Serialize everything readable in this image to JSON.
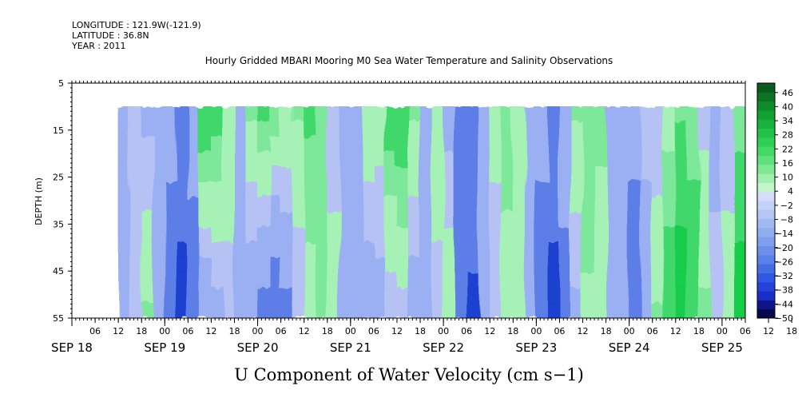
{
  "header": {
    "longitude": "LONGITUDE : 121.9W(-121.9)",
    "latitude": "LATITUDE : 36.8N",
    "year": "YEAR : 2011",
    "title": "Hourly Gridded MBARI Mooring M0 Sea Water Temperature and Salinity Observations"
  },
  "colors": {
    "strong_blue": "#1e3fd0",
    "mid_blue": "#5d7ee6",
    "light_blue": "#9ab0f2",
    "lavender": "#b7c2f4",
    "light_green": "#a6f2b6",
    "mid_green": "#7ee89a",
    "green": "#3fd86a",
    "strong_green": "#12cc4a",
    "colorbar": [
      "#07074e",
      "#10148a",
      "#1a2ec8",
      "#2443dc",
      "#3158e2",
      "#466de6",
      "#5a80ea",
      "#6c90ec",
      "#7f9fee",
      "#90adf0",
      "#a1baf2",
      "#b3c6f4",
      "#c4d2f6",
      "#d4def8",
      "#c2f5c9",
      "#a0efad",
      "#7ee893",
      "#5ee07c",
      "#44d867",
      "#2fcf56",
      "#20c248",
      "#18b23d",
      "#12a033",
      "#0e8a2b",
      "#0c7224",
      "#0a5c1e"
    ]
  },
  "chart_data": {
    "type": "heatmap",
    "title": "Hourly Gridded MBARI Mooring M0 Sea Water Temperature and Salinity Observations",
    "bottom_title": "U Component of Water Velocity (cm s−1)",
    "ylabel": "DEPTH (m)",
    "y_ticks": [
      "5",
      "15",
      "25",
      "35",
      "45",
      "55"
    ],
    "y_range": [
      5,
      55
    ],
    "data_depth_range": [
      10,
      55
    ],
    "hour_ticks": [
      "06",
      "12",
      "18",
      "00",
      "06",
      "12",
      "18",
      "00",
      "06",
      "12",
      "18",
      "00",
      "06",
      "12",
      "18",
      "00",
      "06",
      "12",
      "18",
      "00",
      "06",
      "12",
      "18",
      "00",
      "06",
      "12",
      "18",
      "00",
      "06",
      "12",
      "18",
      "00"
    ],
    "date_labels": [
      "SEP 18",
      "SEP 19",
      "SEP 20",
      "SEP 21",
      "SEP 22",
      "SEP 23",
      "SEP 24",
      "SEP 25"
    ],
    "time_range": [
      "2011-09-18T00:00",
      "2011-09-25T06:00"
    ],
    "data_start": "2011-09-18T12:00",
    "colorbar": {
      "labels": [
        "46",
        "40",
        "34",
        "28",
        "22",
        "16",
        "10",
        "4",
        "−2",
        "−8",
        "−14",
        "−20",
        "−26",
        "−32",
        "−38",
        "−44",
        "−50"
      ],
      "range": [
        -50,
        50
      ]
    },
    "columns": [
      {
        "t": "2011-09-18T12:00",
        "surface": -6,
        "bottom": -6
      },
      {
        "t": "2011-09-18T15:00",
        "surface": -2,
        "bottom": -4
      },
      {
        "t": "2011-09-18T18:00",
        "surface": -6,
        "bottom": 6
      },
      {
        "t": "2011-09-18T21:00",
        "surface": -8,
        "bottom": -6
      },
      {
        "t": "2011-09-19T00:00",
        "surface": -8,
        "bottom": -14
      },
      {
        "t": "2011-09-19T03:00",
        "surface": -10,
        "bottom": -22
      },
      {
        "t": "2011-09-19T06:00",
        "surface": -4,
        "bottom": -18
      },
      {
        "t": "2011-09-19T09:00",
        "surface": 14,
        "bottom": -10
      },
      {
        "t": "2011-09-19T12:00",
        "surface": 12,
        "bottom": -6
      },
      {
        "t": "2011-09-19T15:00",
        "surface": 4,
        "bottom": -2
      },
      {
        "t": "2011-09-19T18:00",
        "surface": -6,
        "bottom": -6
      },
      {
        "t": "2011-09-19T21:00",
        "surface": 6,
        "bottom": -10
      },
      {
        "t": "2011-09-20T00:00",
        "surface": 10,
        "bottom": -14
      },
      {
        "t": "2011-09-20T03:00",
        "surface": 8,
        "bottom": -18
      },
      {
        "t": "2011-09-20T06:00",
        "surface": 4,
        "bottom": -12
      },
      {
        "t": "2011-09-20T09:00",
        "surface": 6,
        "bottom": -4
      },
      {
        "t": "2011-09-20T12:00",
        "surface": 10,
        "bottom": 2
      },
      {
        "t": "2011-09-20T15:00",
        "surface": 8,
        "bottom": 6
      },
      {
        "t": "2011-09-20T18:00",
        "surface": -4,
        "bottom": 4
      },
      {
        "t": "2011-09-20T21:00",
        "surface": -8,
        "bottom": -6
      },
      {
        "t": "2011-09-21T00:00",
        "surface": -4,
        "bottom": -10
      },
      {
        "t": "2011-09-21T03:00",
        "surface": 4,
        "bottom": -8
      },
      {
        "t": "2011-09-21T06:00",
        "surface": 2,
        "bottom": -6
      },
      {
        "t": "2011-09-21T09:00",
        "surface": 12,
        "bottom": -4
      },
      {
        "t": "2011-09-21T12:00",
        "surface": 14,
        "bottom": -2
      },
      {
        "t": "2011-09-21T15:00",
        "surface": 6,
        "bottom": -8
      },
      {
        "t": "2011-09-21T18:00",
        "surface": -4,
        "bottom": -6
      },
      {
        "t": "2011-09-21T21:00",
        "surface": 4,
        "bottom": -2
      },
      {
        "t": "2011-09-22T00:00",
        "surface": -6,
        "bottom": 4
      },
      {
        "t": "2011-09-22T03:00",
        "surface": -12,
        "bottom": -14
      },
      {
        "t": "2011-09-22T06:00",
        "surface": -10,
        "bottom": -20
      },
      {
        "t": "2011-09-22T09:00",
        "surface": -4,
        "bottom": -10
      },
      {
        "t": "2011-09-22T12:00",
        "surface": 2,
        "bottom": -4
      },
      {
        "t": "2011-09-22T15:00",
        "surface": 6,
        "bottom": 4
      },
      {
        "t": "2011-09-22T18:00",
        "surface": 4,
        "bottom": 2
      },
      {
        "t": "2011-09-22T21:00",
        "surface": -4,
        "bottom": -4
      },
      {
        "t": "2011-09-23T00:00",
        "surface": -8,
        "bottom": -14
      },
      {
        "t": "2011-09-23T03:00",
        "surface": -10,
        "bottom": -22
      },
      {
        "t": "2011-09-23T06:00",
        "surface": -4,
        "bottom": -14
      },
      {
        "t": "2011-09-23T09:00",
        "surface": 6,
        "bottom": -6
      },
      {
        "t": "2011-09-23T12:00",
        "surface": 8,
        "bottom": 4
      },
      {
        "t": "2011-09-23T15:00",
        "surface": 6,
        "bottom": 2
      },
      {
        "t": "2011-09-23T18:00",
        "surface": -4,
        "bottom": -4
      },
      {
        "t": "2011-09-23T21:00",
        "surface": -8,
        "bottom": -10
      },
      {
        "t": "2011-09-24T00:00",
        "surface": -6,
        "bottom": -18
      },
      {
        "t": "2011-09-24T03:00",
        "surface": -2,
        "bottom": -8
      },
      {
        "t": "2011-09-24T06:00",
        "surface": -4,
        "bottom": 6
      },
      {
        "t": "2011-09-24T09:00",
        "surface": 2,
        "bottom": 14
      },
      {
        "t": "2011-09-24T12:00",
        "surface": 8,
        "bottom": 18
      },
      {
        "t": "2011-09-24T15:00",
        "surface": 6,
        "bottom": 14
      },
      {
        "t": "2011-09-24T18:00",
        "surface": -2,
        "bottom": 6
      },
      {
        "t": "2011-09-24T21:00",
        "surface": -6,
        "bottom": -2
      },
      {
        "t": "2011-09-25T00:00",
        "surface": -4,
        "bottom": 4
      },
      {
        "t": "2011-09-25T03:00",
        "surface": 6,
        "bottom": 18
      }
    ]
  }
}
